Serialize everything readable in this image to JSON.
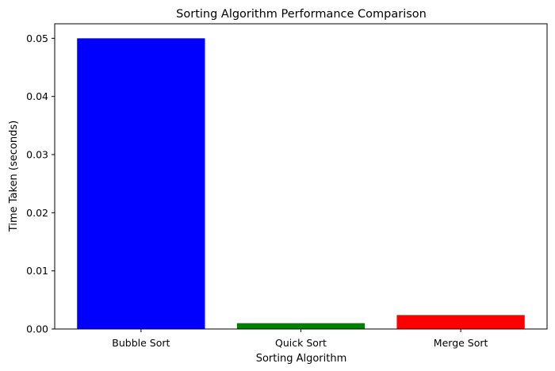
{
  "chart_data": {
    "type": "bar",
    "title": "Sorting Algorithm Performance Comparison",
    "xlabel": "Sorting Algorithm",
    "ylabel": "Time Taken (seconds)",
    "categories": [
      "Bubble Sort",
      "Quick Sort",
      "Merge Sort"
    ],
    "values": [
      0.05,
      0.001,
      0.0024
    ],
    "colors": [
      "#0000ff",
      "#008000",
      "#ff0000"
    ],
    "ylim": [
      0,
      0.0525
    ],
    "yticks": [
      0.0,
      0.01,
      0.02,
      0.03,
      0.04,
      0.05
    ],
    "ytick_labels": [
      "0.00",
      "0.01",
      "0.02",
      "0.03",
      "0.04",
      "0.05"
    ],
    "grid": false,
    "legend": false
  }
}
